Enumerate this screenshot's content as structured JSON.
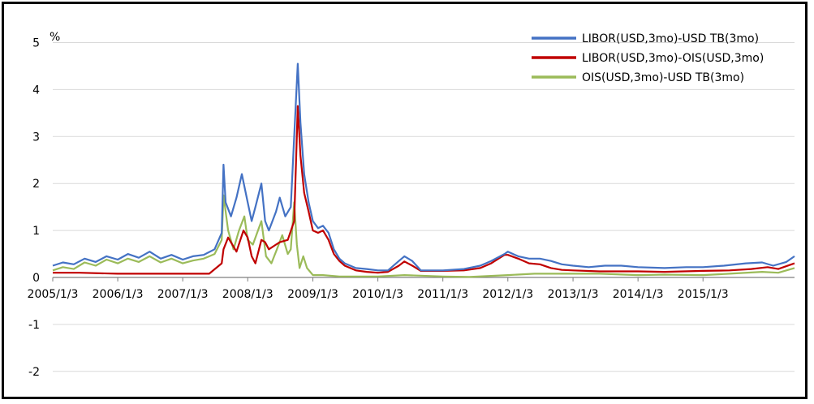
{
  "chart_data": {
    "type": "line",
    "unit_label": "%",
    "ylim": [
      -2,
      5
    ],
    "y_ticks": [
      -2,
      -1,
      0,
      1,
      2,
      3,
      4,
      5
    ],
    "y_tick_labels": [
      "-2",
      "-1",
      "0",
      "1",
      "2",
      "3",
      "4",
      "5"
    ],
    "x_tick_labels": [
      "2005/1/3",
      "2006/1/3",
      "2007/1/3",
      "2008/1/3",
      "2009/1/3",
      "2010/1/3",
      "2011/1/3",
      "2012/1/3",
      "2013/1/3",
      "2014/1/3",
      "2015/1/3"
    ],
    "xlim": [
      "2005-01-03",
      "2016-05-31"
    ],
    "grid": "horizontal",
    "legend_position": "top-right",
    "series": [
      {
        "name": "LIBOR(USD,3mo)-USD TB(3mo)",
        "color": "#4472C4",
        "points": [
          [
            "2005-01-03",
            0.25
          ],
          [
            "2005-03-01",
            0.32
          ],
          [
            "2005-05-01",
            0.28
          ],
          [
            "2005-07-01",
            0.4
          ],
          [
            "2005-09-01",
            0.33
          ],
          [
            "2005-11-01",
            0.45
          ],
          [
            "2006-01-03",
            0.38
          ],
          [
            "2006-03-01",
            0.5
          ],
          [
            "2006-05-01",
            0.42
          ],
          [
            "2006-07-01",
            0.55
          ],
          [
            "2006-09-01",
            0.4
          ],
          [
            "2006-11-01",
            0.48
          ],
          [
            "2007-01-03",
            0.38
          ],
          [
            "2007-03-01",
            0.45
          ],
          [
            "2007-05-01",
            0.48
          ],
          [
            "2007-07-01",
            0.6
          ],
          [
            "2007-08-10",
            0.95
          ],
          [
            "2007-08-20",
            2.4
          ],
          [
            "2007-09-01",
            1.6
          ],
          [
            "2007-10-01",
            1.3
          ],
          [
            "2007-11-01",
            1.7
          ],
          [
            "2007-12-01",
            2.2
          ],
          [
            "2008-01-03",
            1.6
          ],
          [
            "2008-01-25",
            1.2
          ],
          [
            "2008-02-15",
            1.5
          ],
          [
            "2008-03-20",
            2.0
          ],
          [
            "2008-04-10",
            1.2
          ],
          [
            "2008-05-01",
            1.0
          ],
          [
            "2008-06-10",
            1.4
          ],
          [
            "2008-07-01",
            1.7
          ],
          [
            "2008-08-01",
            1.3
          ],
          [
            "2008-09-01",
            1.5
          ],
          [
            "2008-09-20",
            3.0
          ],
          [
            "2008-10-10",
            4.55
          ],
          [
            "2008-10-25",
            3.3
          ],
          [
            "2008-11-15",
            2.2
          ],
          [
            "2008-12-10",
            1.6
          ],
          [
            "2009-01-03",
            1.2
          ],
          [
            "2009-02-01",
            1.05
          ],
          [
            "2009-03-01",
            1.1
          ],
          [
            "2009-04-01",
            0.95
          ],
          [
            "2009-05-01",
            0.6
          ],
          [
            "2009-06-01",
            0.4
          ],
          [
            "2009-07-01",
            0.3
          ],
          [
            "2009-09-01",
            0.2
          ],
          [
            "2009-11-01",
            0.18
          ],
          [
            "2010-01-03",
            0.15
          ],
          [
            "2010-03-01",
            0.15
          ],
          [
            "2010-05-01",
            0.35
          ],
          [
            "2010-06-01",
            0.45
          ],
          [
            "2010-07-15",
            0.35
          ],
          [
            "2010-09-01",
            0.15
          ],
          [
            "2010-11-01",
            0.15
          ],
          [
            "2011-01-03",
            0.15
          ],
          [
            "2011-05-01",
            0.18
          ],
          [
            "2011-08-01",
            0.25
          ],
          [
            "2011-10-01",
            0.35
          ],
          [
            "2011-12-15",
            0.5
          ],
          [
            "2012-01-03",
            0.55
          ],
          [
            "2012-03-01",
            0.45
          ],
          [
            "2012-05-01",
            0.4
          ],
          [
            "2012-07-01",
            0.4
          ],
          [
            "2012-09-01",
            0.35
          ],
          [
            "2012-11-01",
            0.28
          ],
          [
            "2013-01-03",
            0.25
          ],
          [
            "2013-04-01",
            0.22
          ],
          [
            "2013-07-01",
            0.25
          ],
          [
            "2013-10-01",
            0.25
          ],
          [
            "2014-01-03",
            0.22
          ],
          [
            "2014-06-01",
            0.2
          ],
          [
            "2014-10-01",
            0.22
          ],
          [
            "2015-01-03",
            0.22
          ],
          [
            "2015-05-01",
            0.25
          ],
          [
            "2015-09-01",
            0.3
          ],
          [
            "2015-12-01",
            0.32
          ],
          [
            "2016-02-01",
            0.25
          ],
          [
            "2016-04-15",
            0.33
          ],
          [
            "2016-05-31",
            0.45
          ]
        ]
      },
      {
        "name": "LIBOR(USD,3mo)-OIS(USD,3mo)",
        "color": "#C00000",
        "points": [
          [
            "2005-01-03",
            0.1
          ],
          [
            "2005-06-01",
            0.1
          ],
          [
            "2006-01-03",
            0.08
          ],
          [
            "2006-06-01",
            0.08
          ],
          [
            "2007-01-03",
            0.08
          ],
          [
            "2007-06-01",
            0.08
          ],
          [
            "2007-08-10",
            0.3
          ],
          [
            "2007-08-20",
            0.6
          ],
          [
            "2007-09-15",
            0.85
          ],
          [
            "2007-11-01",
            0.55
          ],
          [
            "2007-12-10",
            1.0
          ],
          [
            "2008-01-03",
            0.85
          ],
          [
            "2008-01-25",
            0.45
          ],
          [
            "2008-02-15",
            0.3
          ],
          [
            "2008-03-20",
            0.8
          ],
          [
            "2008-04-10",
            0.75
          ],
          [
            "2008-05-01",
            0.6
          ],
          [
            "2008-06-10",
            0.7
          ],
          [
            "2008-07-01",
            0.75
          ],
          [
            "2008-08-15",
            0.8
          ],
          [
            "2008-09-20",
            1.2
          ],
          [
            "2008-10-10",
            3.65
          ],
          [
            "2008-10-25",
            2.6
          ],
          [
            "2008-11-15",
            1.8
          ],
          [
            "2008-12-10",
            1.4
          ],
          [
            "2009-01-03",
            1.0
          ],
          [
            "2009-02-01",
            0.95
          ],
          [
            "2009-03-01",
            1.0
          ],
          [
            "2009-04-01",
            0.8
          ],
          [
            "2009-05-01",
            0.5
          ],
          [
            "2009-06-01",
            0.35
          ],
          [
            "2009-07-01",
            0.25
          ],
          [
            "2009-09-01",
            0.15
          ],
          [
            "2009-11-01",
            0.12
          ],
          [
            "2010-01-03",
            0.1
          ],
          [
            "2010-03-01",
            0.12
          ],
          [
            "2010-05-01",
            0.25
          ],
          [
            "2010-06-01",
            0.34
          ],
          [
            "2010-07-15",
            0.25
          ],
          [
            "2010-09-01",
            0.14
          ],
          [
            "2011-01-03",
            0.14
          ],
          [
            "2011-05-01",
            0.15
          ],
          [
            "2011-08-01",
            0.2
          ],
          [
            "2011-10-01",
            0.3
          ],
          [
            "2011-12-15",
            0.48
          ],
          [
            "2012-01-03",
            0.48
          ],
          [
            "2012-03-01",
            0.4
          ],
          [
            "2012-05-01",
            0.3
          ],
          [
            "2012-07-01",
            0.28
          ],
          [
            "2012-09-01",
            0.2
          ],
          [
            "2012-11-01",
            0.16
          ],
          [
            "2013-01-03",
            0.15
          ],
          [
            "2013-06-01",
            0.13
          ],
          [
            "2014-01-03",
            0.13
          ],
          [
            "2014-06-01",
            0.12
          ],
          [
            "2015-01-03",
            0.14
          ],
          [
            "2015-06-01",
            0.15
          ],
          [
            "2015-10-01",
            0.18
          ],
          [
            "2016-01-01",
            0.22
          ],
          [
            "2016-03-01",
            0.18
          ],
          [
            "2016-05-31",
            0.3
          ]
        ]
      },
      {
        "name": "OIS(USD,3mo)-USD TB(3mo)",
        "color": "#9BBB59",
        "points": [
          [
            "2005-01-03",
            0.15
          ],
          [
            "2005-03-01",
            0.22
          ],
          [
            "2005-05-01",
            0.18
          ],
          [
            "2005-07-01",
            0.32
          ],
          [
            "2005-09-01",
            0.25
          ],
          [
            "2005-11-01",
            0.38
          ],
          [
            "2006-01-03",
            0.3
          ],
          [
            "2006-03-01",
            0.4
          ],
          [
            "2006-05-01",
            0.33
          ],
          [
            "2006-07-01",
            0.45
          ],
          [
            "2006-09-01",
            0.32
          ],
          [
            "2006-11-01",
            0.4
          ],
          [
            "2007-01-03",
            0.3
          ],
          [
            "2007-03-01",
            0.36
          ],
          [
            "2007-05-01",
            0.4
          ],
          [
            "2007-07-01",
            0.5
          ],
          [
            "2007-08-10",
            0.8
          ],
          [
            "2007-08-20",
            1.75
          ],
          [
            "2007-09-15",
            1.0
          ],
          [
            "2007-10-15",
            0.6
          ],
          [
            "2007-11-15",
            1.0
          ],
          [
            "2007-12-15",
            1.3
          ],
          [
            "2008-01-03",
            0.8
          ],
          [
            "2008-02-01",
            0.7
          ],
          [
            "2008-03-20",
            1.2
          ],
          [
            "2008-04-15",
            0.45
          ],
          [
            "2008-05-15",
            0.3
          ],
          [
            "2008-06-15",
            0.6
          ],
          [
            "2008-07-15",
            0.9
          ],
          [
            "2008-08-15",
            0.5
          ],
          [
            "2008-09-01",
            0.6
          ],
          [
            "2008-09-20",
            1.6
          ],
          [
            "2008-10-05",
            0.7
          ],
          [
            "2008-10-20",
            0.2
          ],
          [
            "2008-11-10",
            0.45
          ],
          [
            "2008-12-01",
            0.2
          ],
          [
            "2009-01-03",
            0.05
          ],
          [
            "2009-03-01",
            0.05
          ],
          [
            "2009-06-01",
            0.02
          ],
          [
            "2010-01-03",
            0.02
          ],
          [
            "2010-06-01",
            0.05
          ],
          [
            "2011-01-03",
            0.02
          ],
          [
            "2011-06-01",
            0.01
          ],
          [
            "2012-01-03",
            0.05
          ],
          [
            "2012-06-01",
            0.08
          ],
          [
            "2013-01-03",
            0.08
          ],
          [
            "2013-06-01",
            0.08
          ],
          [
            "2014-01-03",
            0.05
          ],
          [
            "2014-06-01",
            0.06
          ],
          [
            "2015-01-03",
            0.05
          ],
          [
            "2015-06-01",
            0.08
          ],
          [
            "2015-12-01",
            0.12
          ],
          [
            "2016-03-01",
            0.1
          ],
          [
            "2016-05-31",
            0.2
          ]
        ]
      }
    ]
  }
}
